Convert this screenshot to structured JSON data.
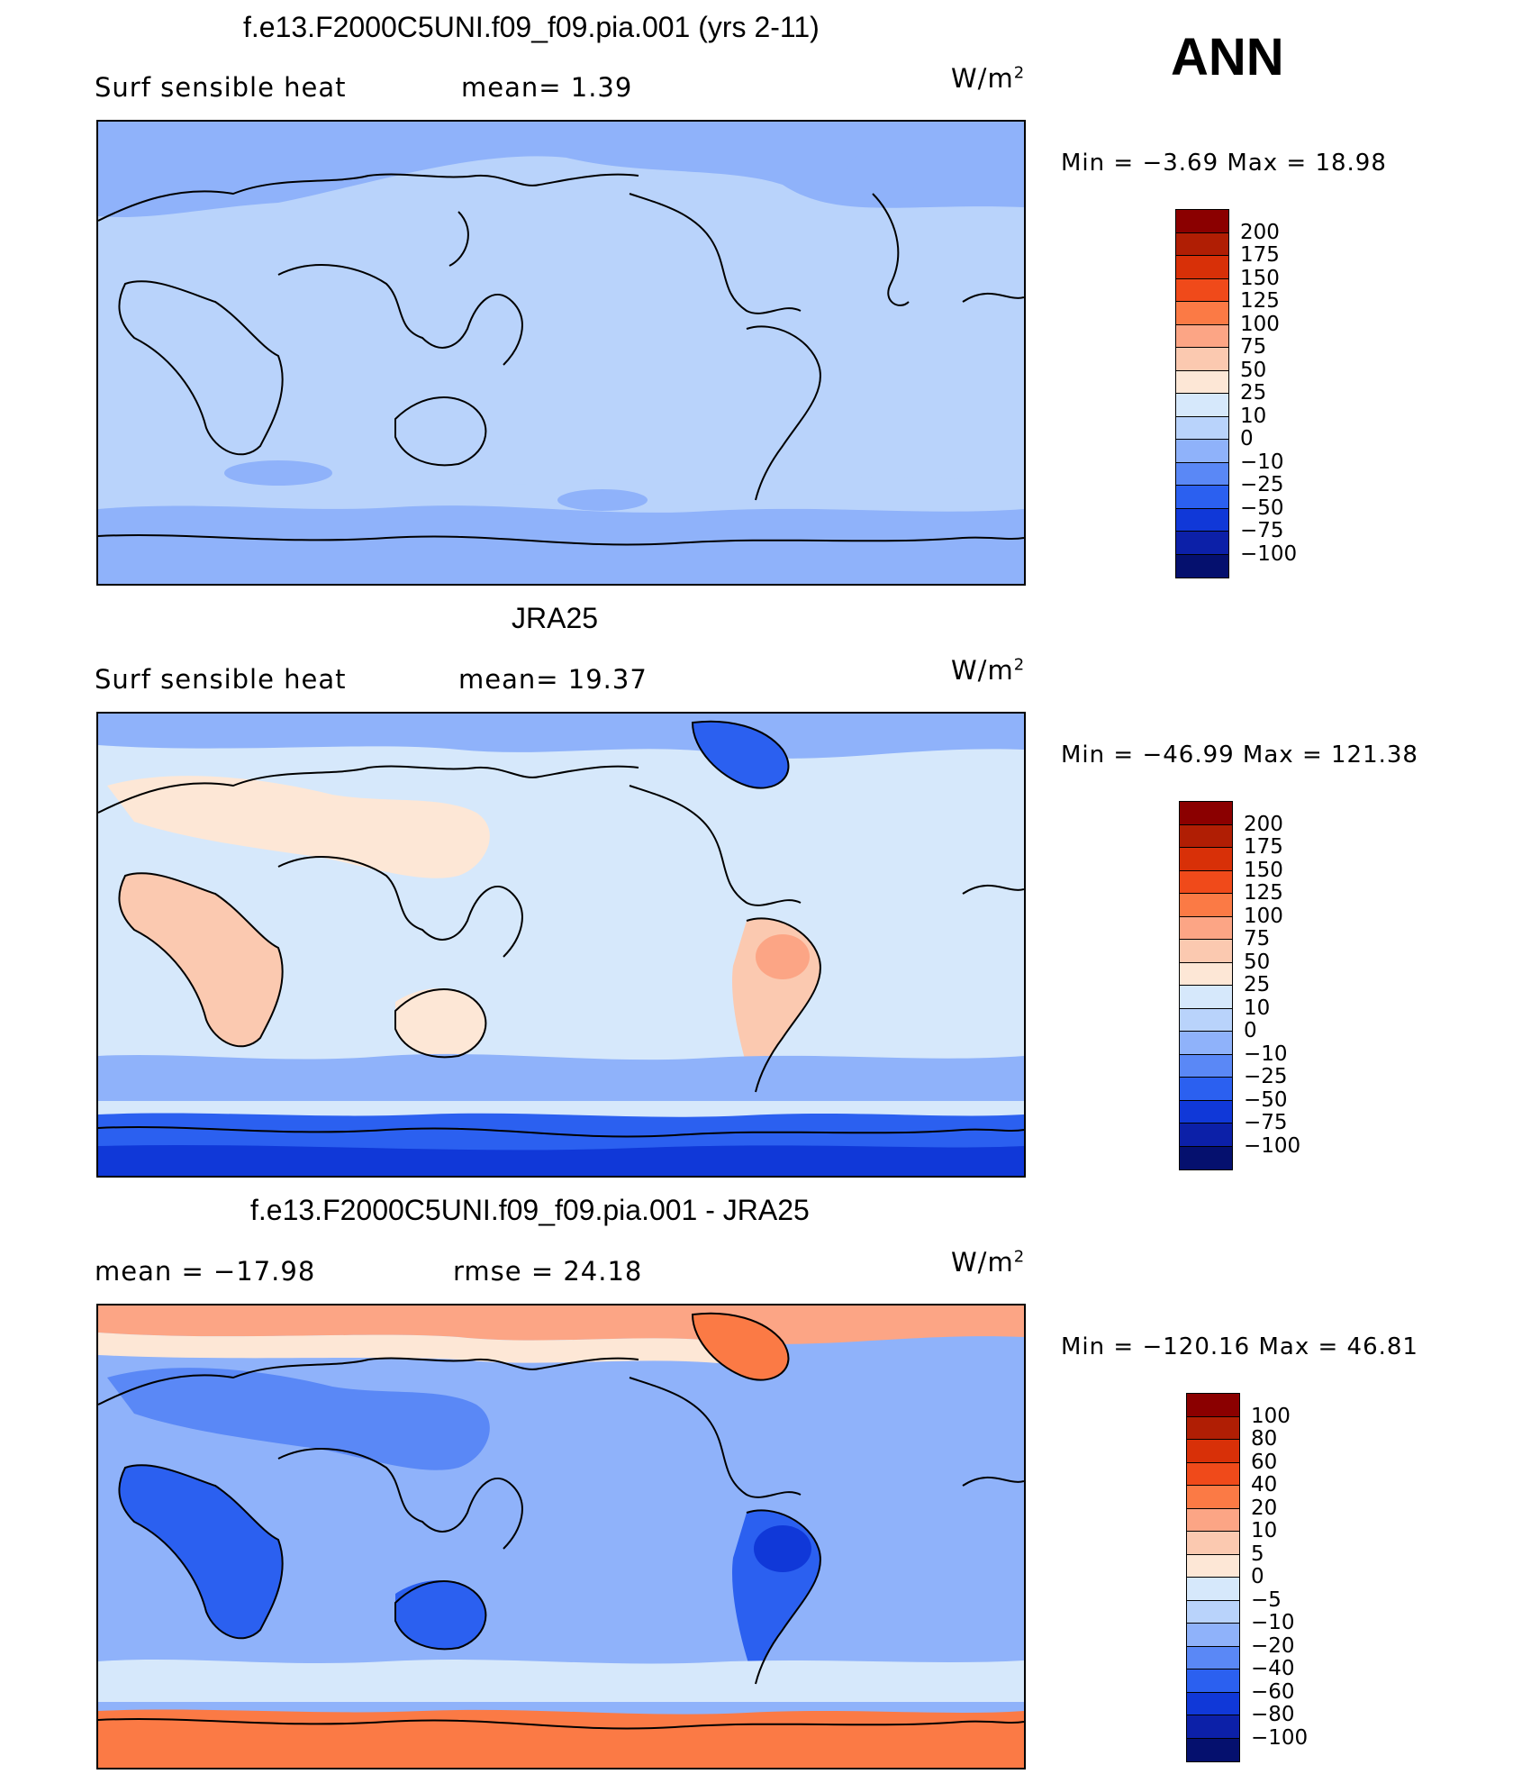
{
  "annual_label": "ANN",
  "panels": [
    {
      "title": "f.e13.F2000C5UNI.f09_f09.pia.001 (yrs 2-11)",
      "left_label": "Surf  sensible  heat",
      "mid_label": "mean=    1.39",
      "units": "W/m",
      "units_exp": "2",
      "min_label": "Min  =    −3.69  Max  =    18.98",
      "scale_levels": [
        "200",
        "175",
        "150",
        "125",
        "100",
        "75",
        "50",
        "25",
        "10",
        "0",
        "−10",
        "−25",
        "−50",
        "−75",
        "−100"
      ],
      "scale_colors": [
        "#8b0000",
        "#b01e04",
        "#d83008",
        "#f04a1a",
        "#fb7a45",
        "#fca585",
        "#fbc9b0",
        "#fde7d6",
        "#d6e8fb",
        "#b9d3fb",
        "#8fb2fa",
        "#5a88f6",
        "#2b60f0",
        "#1038d8",
        "#0c20a8",
        "#05106e"
      ],
      "ocean_color": "#b9d3fb",
      "land_color": "#b9d3fb",
      "band_color": "#8fb2fa"
    },
    {
      "title": "JRA25",
      "left_label": "Surf  sensible  heat",
      "mid_label": "mean=   19.37",
      "units": "W/m",
      "units_exp": "2",
      "min_label": "Min  =  −46.99  Max  =  121.38",
      "scale_levels": [
        "200",
        "175",
        "150",
        "125",
        "100",
        "75",
        "50",
        "25",
        "10",
        "0",
        "−10",
        "−25",
        "−50",
        "−75",
        "−100"
      ],
      "scale_colors": [
        "#8b0000",
        "#b01e04",
        "#d83008",
        "#f04a1a",
        "#fb7a45",
        "#fca585",
        "#fbc9b0",
        "#fde7d6",
        "#d6e8fb",
        "#b9d3fb",
        "#8fb2fa",
        "#5a88f6",
        "#2b60f0",
        "#1038d8",
        "#0c20a8",
        "#05106e"
      ],
      "ocean_color": "#d6e8fb",
      "land_color": "#fde7d6",
      "band_color": "#2b60f0"
    },
    {
      "title": "f.e13.F2000C5UNI.f09_f09.pia.001 - JRA25",
      "left_label": "mean  =  −17.98",
      "mid_label": "rmse  =    24.18",
      "units": "W/m",
      "units_exp": "2",
      "min_label": "Min  =  −120.16  Max  =    46.81",
      "scale_levels": [
        "100",
        "80",
        "60",
        "40",
        "20",
        "10",
        "5",
        "0",
        "−5",
        "−10",
        "−20",
        "−40",
        "−60",
        "−80",
        "−100"
      ],
      "scale_colors": [
        "#8b0000",
        "#b01e04",
        "#d83008",
        "#f04a1a",
        "#fb7a45",
        "#fca585",
        "#fbc9b0",
        "#fde7d6",
        "#d6e8fb",
        "#b9d3fb",
        "#8fb2fa",
        "#5a88f6",
        "#2b60f0",
        "#1038d8",
        "#0c20a8",
        "#05106e"
      ],
      "ocean_color": "#8fb2fa",
      "land_color": "#5a88f6",
      "band_color": "#fb7a45"
    }
  ]
}
